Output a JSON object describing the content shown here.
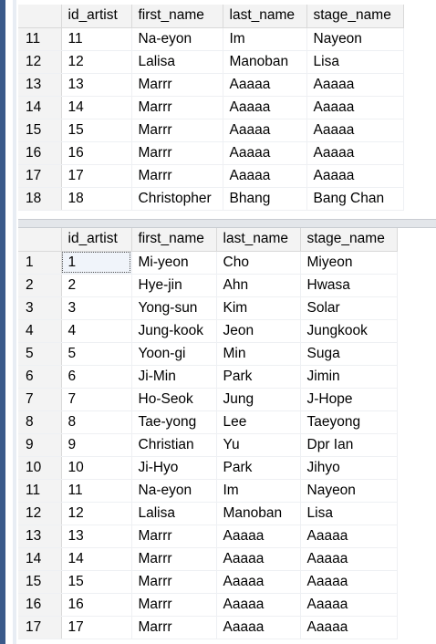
{
  "columns": [
    "",
    "id_artist",
    "first_name",
    "last_name",
    "stage_name"
  ],
  "grid1": {
    "rows": [
      [
        "11",
        "11",
        "Na-eyon",
        "Im",
        "Nayeon"
      ],
      [
        "12",
        "12",
        "Lalisa",
        "Manoban",
        "Lisa"
      ],
      [
        "13",
        "13",
        "Marrr",
        "Aaaaa",
        "Aaaaa"
      ],
      [
        "14",
        "14",
        "Marrr",
        "Aaaaa",
        "Aaaaa"
      ],
      [
        "15",
        "15",
        "Marrr",
        "Aaaaa",
        "Aaaaa"
      ],
      [
        "16",
        "16",
        "Marrr",
        "Aaaaa",
        "Aaaaa"
      ],
      [
        "17",
        "17",
        "Marrr",
        "Aaaaa",
        "Aaaaa"
      ],
      [
        "18",
        "18",
        "Christopher",
        "Bhang",
        "Bang Chan"
      ]
    ]
  },
  "grid2": {
    "rows": [
      [
        "1",
        "1",
        "Mi-yeon",
        "Cho",
        "Miyeon"
      ],
      [
        "2",
        "2",
        "Hye-jin",
        "Ahn",
        "Hwasa"
      ],
      [
        "3",
        "3",
        "Yong-sun",
        "Kim",
        "Solar"
      ],
      [
        "4",
        "4",
        "Jung-kook",
        "Jeon",
        "Jungkook"
      ],
      [
        "5",
        "5",
        "Yoon-gi",
        "Min",
        "Suga"
      ],
      [
        "6",
        "6",
        "Ji-Min",
        "Park",
        "Jimin"
      ],
      [
        "7",
        "7",
        "Ho-Seok",
        "Jung",
        "J-Hope"
      ],
      [
        "8",
        "8",
        "Tae-yong",
        "Lee",
        "Taeyong"
      ],
      [
        "9",
        "9",
        "Christian",
        "Yu",
        "Dpr Ian"
      ],
      [
        "10",
        "10",
        "Ji-Hyo",
        "Park",
        "Jihyo"
      ],
      [
        "11",
        "11",
        "Na-eyon",
        "Im",
        "Nayeon"
      ],
      [
        "12",
        "12",
        "Lalisa",
        "Manoban",
        "Lisa"
      ],
      [
        "13",
        "13",
        "Marrr",
        "Aaaaa",
        "Aaaaa"
      ],
      [
        "14",
        "14",
        "Marrr",
        "Aaaaa",
        "Aaaaa"
      ],
      [
        "15",
        "15",
        "Marrr",
        "Aaaaa",
        "Aaaaa"
      ],
      [
        "16",
        "16",
        "Marrr",
        "Aaaaa",
        "Aaaaa"
      ],
      [
        "17",
        "17",
        "Marrr",
        "Aaaaa",
        "Aaaaa"
      ]
    ]
  }
}
